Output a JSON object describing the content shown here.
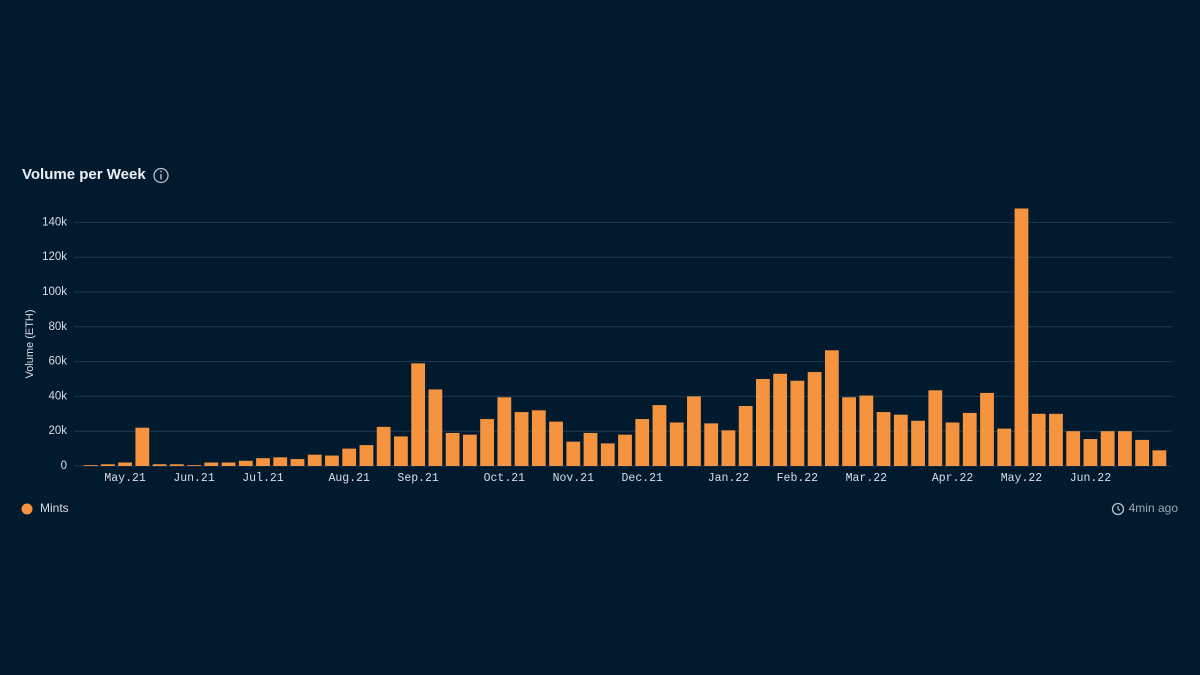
{
  "chart_data": {
    "type": "bar",
    "title": "Volume per Week",
    "y_label": "Volume (ETH)",
    "categories": [
      null,
      null,
      "May.21",
      null,
      null,
      null,
      "Jun.21",
      null,
      null,
      null,
      "Jul.21",
      null,
      null,
      null,
      null,
      "Aug.21",
      null,
      null,
      null,
      "Sep.21",
      null,
      null,
      null,
      null,
      "Oct.21",
      null,
      null,
      null,
      "Nov.21",
      null,
      null,
      null,
      "Dec.21",
      null,
      null,
      null,
      null,
      "Jan.22",
      null,
      null,
      null,
      "Feb.22",
      null,
      null,
      null,
      "Mar.22",
      null,
      null,
      null,
      null,
      "Apr.22",
      null,
      null,
      null,
      "May.22",
      null,
      null,
      null,
      "Jun.22",
      null,
      null,
      null,
      null
    ],
    "series": [
      {
        "name": "Mints",
        "color": "#f5933f",
        "values": [
          500,
          1000,
          2000,
          22000,
          1000,
          1000,
          500,
          2000,
          2000,
          3000,
          4500,
          5000,
          4000,
          6500,
          6000,
          10000,
          12000,
          22500,
          17000,
          59000,
          44000,
          19000,
          18000,
          27000,
          39500,
          31000,
          32000,
          25500,
          14000,
          19000,
          13000,
          18000,
          27000,
          35000,
          25000,
          40000,
          24500,
          20500,
          34500,
          50000,
          53000,
          49000,
          54000,
          66500,
          39500,
          40500,
          31000,
          29500,
          26000,
          43500,
          25000,
          30500,
          42000,
          21500,
          148000,
          30000,
          30000,
          20000,
          15500,
          20000,
          20000,
          15000,
          9000
        ]
      }
    ],
    "ylim": [
      0,
      150000
    ],
    "yticks": [
      0,
      {
        "value": 20000,
        "label": "20k"
      },
      {
        "value": 40000,
        "label": "40k"
      },
      {
        "value": 60000,
        "label": "60k"
      },
      {
        "value": 80000,
        "label": "80k"
      },
      {
        "value": 100000,
        "label": "100k"
      },
      {
        "value": 120000,
        "label": "120k"
      },
      {
        "value": 140000,
        "label": "140k"
      }
    ],
    "grid": true,
    "updated": "4min ago"
  }
}
